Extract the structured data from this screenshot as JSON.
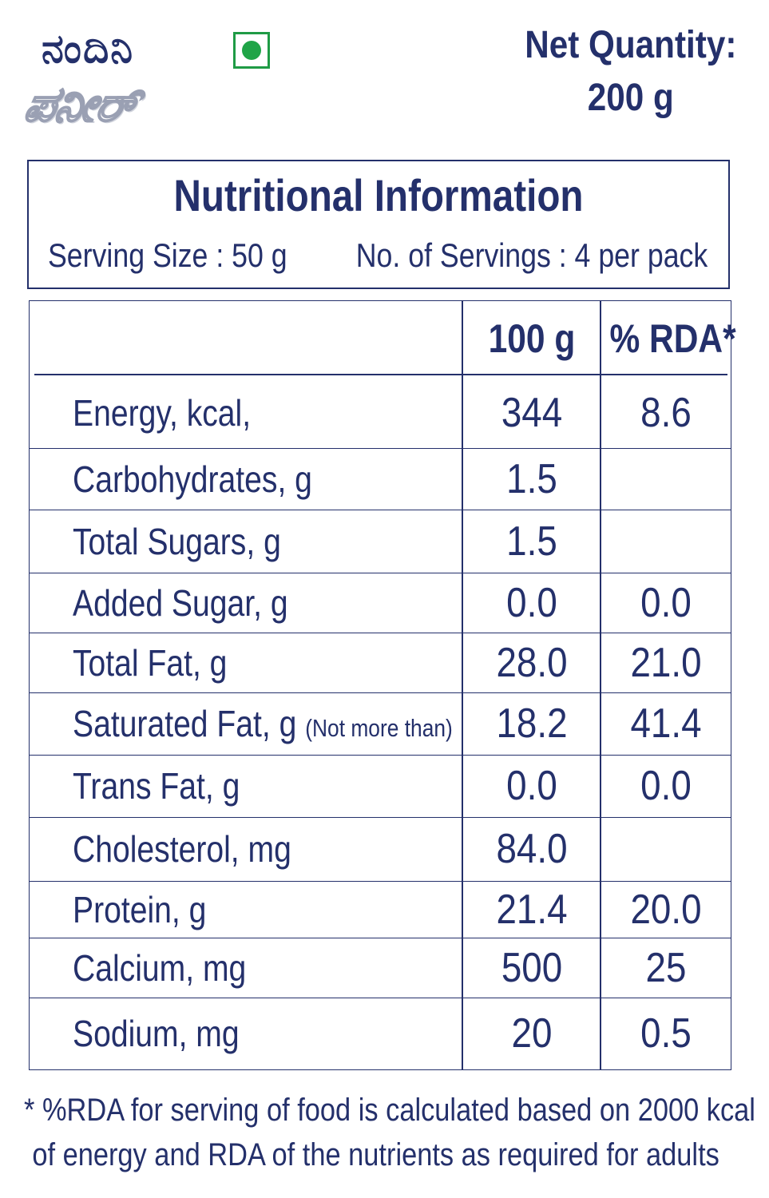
{
  "brand": {
    "name_kannada": "ನಂದಿನಿ",
    "sub_kannada": "ಪನೀರ್"
  },
  "veg_mark": {
    "icon": "veg-symbol-icon",
    "color": "#1fa447"
  },
  "net_quantity": {
    "label": "Net Quantity:",
    "value": "200 g"
  },
  "info": {
    "title": "Nutritional Information",
    "serving_size": "Serving Size : 50 g",
    "servings": "No. of Servings : 4 per pack"
  },
  "table": {
    "headers": [
      "100 g",
      "% RDA*"
    ],
    "rows": [
      {
        "label": "Energy, kcal,",
        "note": "",
        "per100": "344",
        "rda": "8.6"
      },
      {
        "label": "Carbohydrates, g",
        "note": "",
        "per100": "1.5",
        "rda": ""
      },
      {
        "label": "Total Sugars, g",
        "note": "",
        "per100": "1.5",
        "rda": ""
      },
      {
        "label": "Added Sugar, g",
        "note": "",
        "per100": "0.0",
        "rda": "0.0"
      },
      {
        "label": "Total Fat, g",
        "note": "",
        "per100": "28.0",
        "rda": "21.0"
      },
      {
        "label": "Saturated Fat, g",
        "note": "(Not more than)",
        "per100": "18.2",
        "rda": "41.4"
      },
      {
        "label": "Trans Fat, g",
        "note": "",
        "per100": "0.0",
        "rda": "0.0"
      },
      {
        "label": "Cholesterol, mg",
        "note": "",
        "per100": "84.0",
        "rda": ""
      },
      {
        "label": "Protein, g",
        "note": "",
        "per100": "21.4",
        "rda": "20.0"
      },
      {
        "label": "Calcium, mg",
        "note": "",
        "per100": "500",
        "rda": "25"
      },
      {
        "label": "Sodium, mg",
        "note": "",
        "per100": "20",
        "rda": "0.5"
      }
    ]
  },
  "footnote": {
    "line1": "* %RDA  for serving of food is calculated based on 2000 kcal",
    "line2": "of energy and RDA of the nutrients as required for adults"
  }
}
